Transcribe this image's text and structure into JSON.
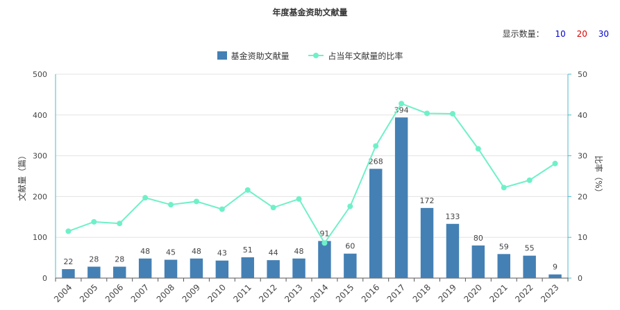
{
  "title": "年度基金资助文献量",
  "count_selector": {
    "label": "显示数量：",
    "options": [
      "10",
      "20",
      "30"
    ],
    "colors": [
      "#0000cc",
      "#dd0000",
      "#0000cc"
    ]
  },
  "chart_data": {
    "type": "bar",
    "categories": [
      "2004",
      "2005",
      "2006",
      "2007",
      "2008",
      "2009",
      "2010",
      "2011",
      "2012",
      "2013",
      "2014",
      "2015",
      "2016",
      "2017",
      "2018",
      "2019",
      "2020",
      "2021",
      "2022",
      "2023"
    ],
    "series": [
      {
        "name": "基金资助文献量",
        "type": "bar",
        "axis": "left",
        "color": "#4480b4",
        "values": [
          22,
          28,
          28,
          48,
          45,
          48,
          43,
          51,
          44,
          48,
          91,
          60,
          268,
          394,
          172,
          133,
          80,
          59,
          55,
          9
        ]
      },
      {
        "name": "占当年文献量的比率",
        "type": "line",
        "axis": "right",
        "color": "#6ff0c8",
        "values": [
          11.5,
          13.8,
          13.4,
          19.7,
          18.0,
          18.8,
          16.9,
          21.6,
          17.3,
          19.4,
          8.6,
          17.6,
          32.4,
          42.8,
          40.4,
          40.3,
          31.7,
          22.2,
          24.0,
          28.1
        ]
      }
    ],
    "ylabel": "文献量（篇）",
    "y2label": "比率（%）",
    "ylim": [
      0,
      500
    ],
    "y2lim": [
      0,
      50
    ],
    "yticks": [
      "0",
      "100",
      "200",
      "300",
      "400",
      "500"
    ],
    "y2ticks": [
      "0",
      "10",
      "20",
      "30",
      "40",
      "50"
    ],
    "grid": true,
    "legend": "top-center"
  }
}
